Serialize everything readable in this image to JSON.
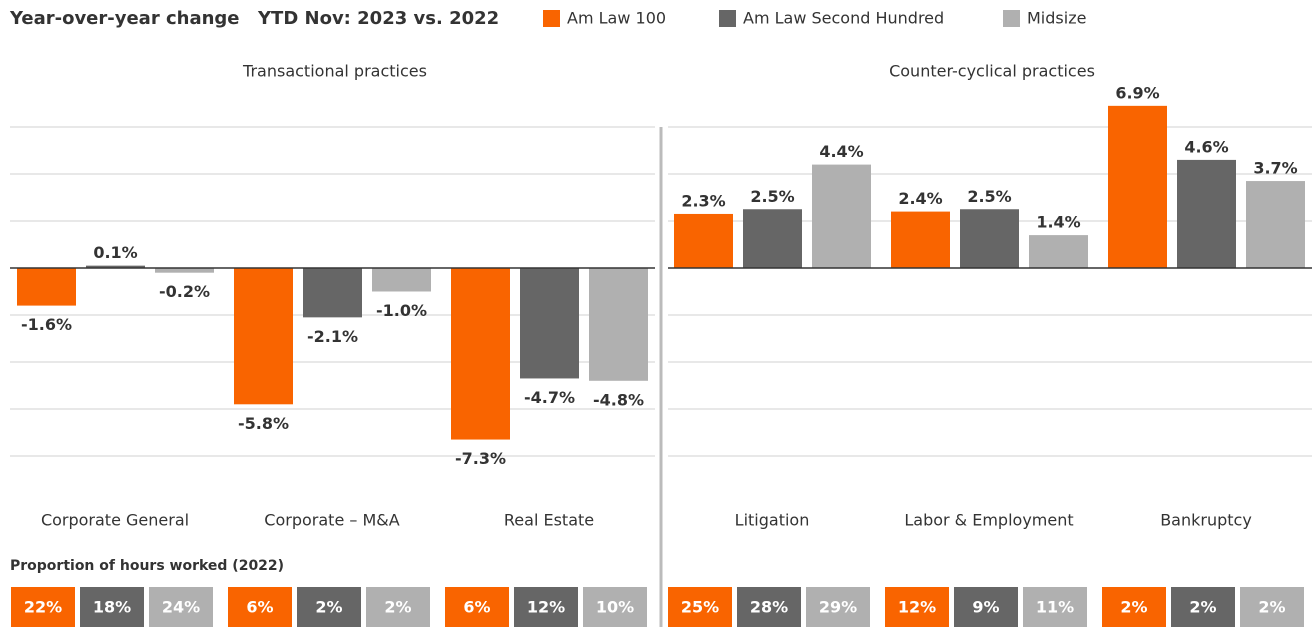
{
  "header": {
    "title": "Year-over-year change",
    "subtitle": "YTD Nov: 2023 vs. 2022"
  },
  "proportions_title": "Proportion of hours worked (2022)",
  "chart_data": [
    {
      "type": "bar",
      "title": "Transactional practices",
      "categories": [
        "Corporate General",
        "Corporate – M&A",
        "Real Estate"
      ],
      "ylim": [
        -8,
        7
      ],
      "yticks": [
        -8,
        -6,
        -4,
        -2,
        0,
        2,
        4,
        6
      ],
      "grid": true,
      "series": [
        {
          "name": "Am Law 100",
          "color": "#f96400",
          "values": [
            -1.6,
            -5.8,
            -7.3
          ],
          "value_labels": [
            "-1.6%",
            "-5.8%",
            "-7.3%"
          ],
          "shares": [
            "22%",
            "6%",
            "6%"
          ]
        },
        {
          "name": "Am Law Second Hundred",
          "color": "#666666",
          "values": [
            0.1,
            -2.1,
            -4.7
          ],
          "value_labels": [
            "0.1%",
            "-2.1%",
            "-4.7%"
          ],
          "shares": [
            "18%",
            "2%",
            "12%"
          ]
        },
        {
          "name": "Midsize",
          "color": "#b0b0b0",
          "values": [
            -0.2,
            -1.0,
            -4.8
          ],
          "value_labels": [
            "-0.2%",
            "-1.0%",
            "-4.8%"
          ],
          "shares": [
            "24%",
            "2%",
            "10%"
          ]
        }
      ]
    },
    {
      "type": "bar",
      "title": "Counter-cyclical practices",
      "categories": [
        "Litigation",
        "Labor & Employment",
        "Bankruptcy"
      ],
      "ylim": [
        -8,
        7
      ],
      "yticks": [
        -8,
        -6,
        -4,
        -2,
        0,
        2,
        4,
        6
      ],
      "grid": true,
      "series": [
        {
          "name": "Am Law 100",
          "color": "#f96400",
          "values": [
            2.3,
            2.4,
            6.9
          ],
          "value_labels": [
            "2.3%",
            "2.4%",
            "6.9%"
          ],
          "shares": [
            "25%",
            "12%",
            "2%"
          ]
        },
        {
          "name": "Am Law Second Hundred",
          "color": "#666666",
          "values": [
            2.5,
            2.5,
            4.6
          ],
          "value_labels": [
            "2.5%",
            "2.5%",
            "4.6%"
          ],
          "shares": [
            "28%",
            "9%",
            "2%"
          ]
        },
        {
          "name": "Midsize",
          "color": "#b0b0b0",
          "values": [
            4.4,
            1.4,
            3.7
          ],
          "value_labels": [
            "4.4%",
            "1.4%",
            "3.7%"
          ],
          "shares": [
            "29%",
            "11%",
            "2%"
          ]
        }
      ]
    }
  ]
}
